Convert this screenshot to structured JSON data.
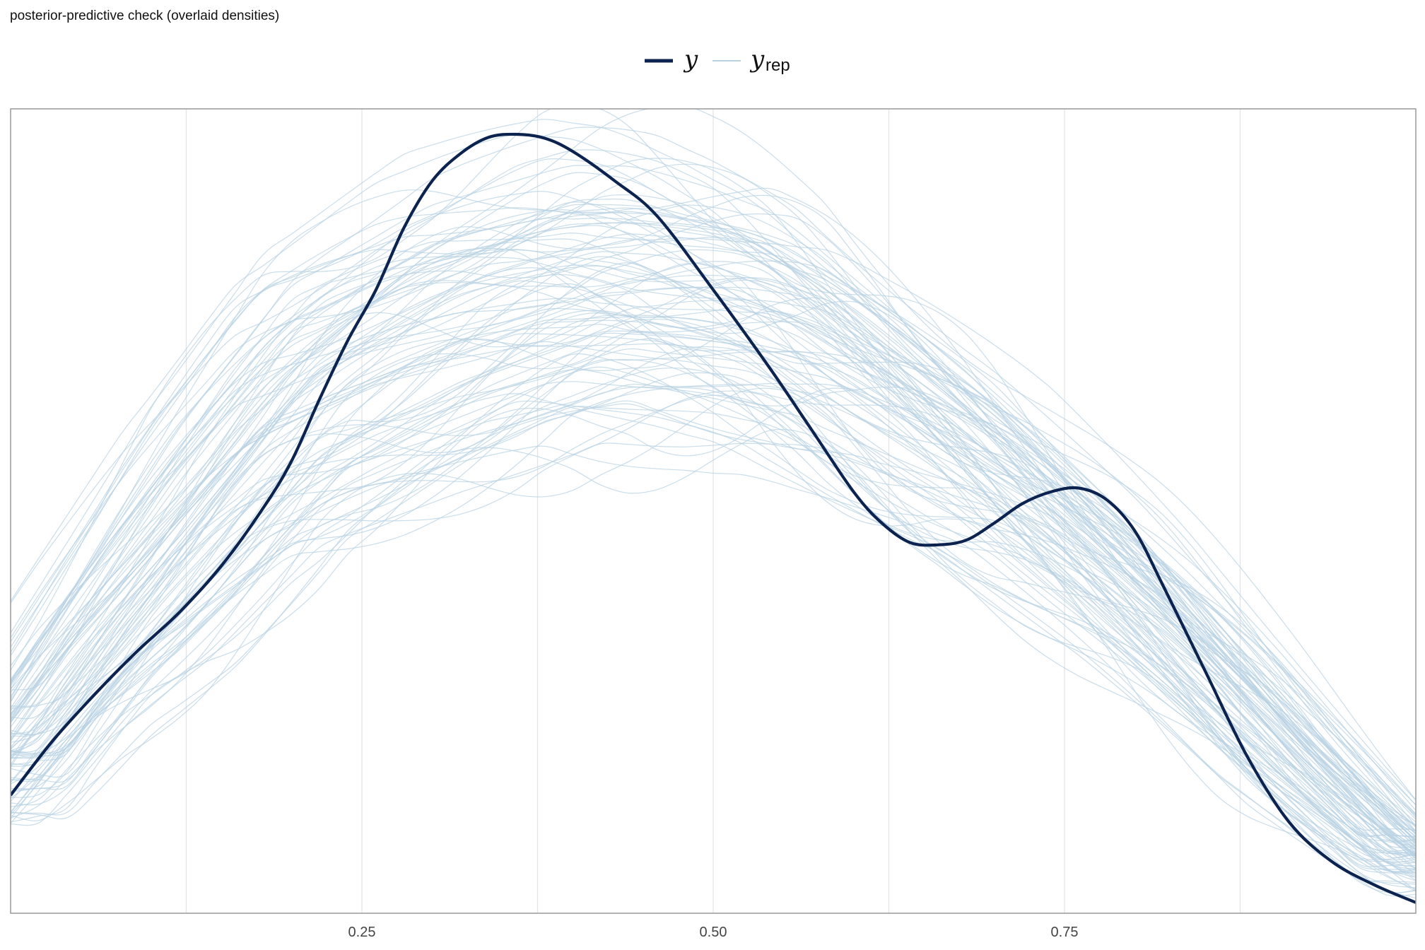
{
  "chart_data": {
    "type": "line",
    "title": "posterior-predictive check (overlaid densities)",
    "xlabel": "",
    "ylabel": "",
    "xlim": [
      0.0,
      1.0
    ],
    "ylim": [
      0.0,
      1.0
    ],
    "x_ticks": [
      0.25,
      0.5,
      0.75
    ],
    "x_tick_labels": [
      "0.25",
      "0.50",
      "0.75"
    ],
    "x_gridlines": [
      0.125,
      0.25,
      0.375,
      0.5,
      0.625,
      0.75,
      0.875
    ],
    "y_axis_labels_shown": false,
    "grid": true,
    "legend": {
      "position": "top-center",
      "entries": [
        {
          "symbol": "y",
          "subscript": "",
          "color": "#0c2350",
          "width": "thick"
        },
        {
          "symbol": "y",
          "subscript": "rep",
          "color": "#b8d1e3",
          "width": "thin"
        }
      ]
    },
    "colors": {
      "y": "#0c2350",
      "y_rep": "#b8d1e3",
      "grid": "#e2e4e8",
      "border": "#999999"
    },
    "observed_series": {
      "name": "y",
      "x": [
        0.0,
        0.03,
        0.06,
        0.09,
        0.12,
        0.15,
        0.18,
        0.2,
        0.22,
        0.24,
        0.26,
        0.28,
        0.3,
        0.32,
        0.34,
        0.36,
        0.38,
        0.4,
        0.43,
        0.46,
        0.5,
        0.54,
        0.57,
        0.6,
        0.62,
        0.64,
        0.66,
        0.68,
        0.7,
        0.72,
        0.74,
        0.76,
        0.78,
        0.8,
        0.82,
        0.85,
        0.88,
        0.91,
        0.94,
        0.97,
        1.0
      ],
      "y": [
        0.15,
        0.22,
        0.28,
        0.335,
        0.385,
        0.445,
        0.52,
        0.58,
        0.66,
        0.735,
        0.8,
        0.88,
        0.94,
        0.975,
        0.996,
        1.0,
        0.995,
        0.978,
        0.94,
        0.895,
        0.8,
        0.7,
        0.62,
        0.54,
        0.5,
        0.475,
        0.472,
        0.478,
        0.5,
        0.525,
        0.54,
        0.545,
        0.53,
        0.49,
        0.42,
        0.31,
        0.2,
        0.115,
        0.065,
        0.035,
        0.012
      ]
    },
    "replicated_series_count": 100,
    "replicated_series_envelope": {
      "x": [
        0.0,
        0.06,
        0.12,
        0.2,
        0.3,
        0.4,
        0.45,
        0.5,
        0.55,
        0.6,
        0.7,
        0.8,
        0.9,
        1.0
      ],
      "lower": [
        0.1,
        0.22,
        0.3,
        0.45,
        0.53,
        0.6,
        0.59,
        0.59,
        0.58,
        0.54,
        0.45,
        0.3,
        0.14,
        0.03
      ],
      "mean": [
        0.2,
        0.37,
        0.5,
        0.64,
        0.74,
        0.79,
        0.79,
        0.78,
        0.76,
        0.71,
        0.58,
        0.4,
        0.2,
        0.05
      ],
      "upper": [
        0.3,
        0.48,
        0.66,
        0.85,
        0.96,
        1.01,
        1.01,
        0.98,
        0.94,
        0.86,
        0.7,
        0.52,
        0.32,
        0.1
      ]
    }
  }
}
